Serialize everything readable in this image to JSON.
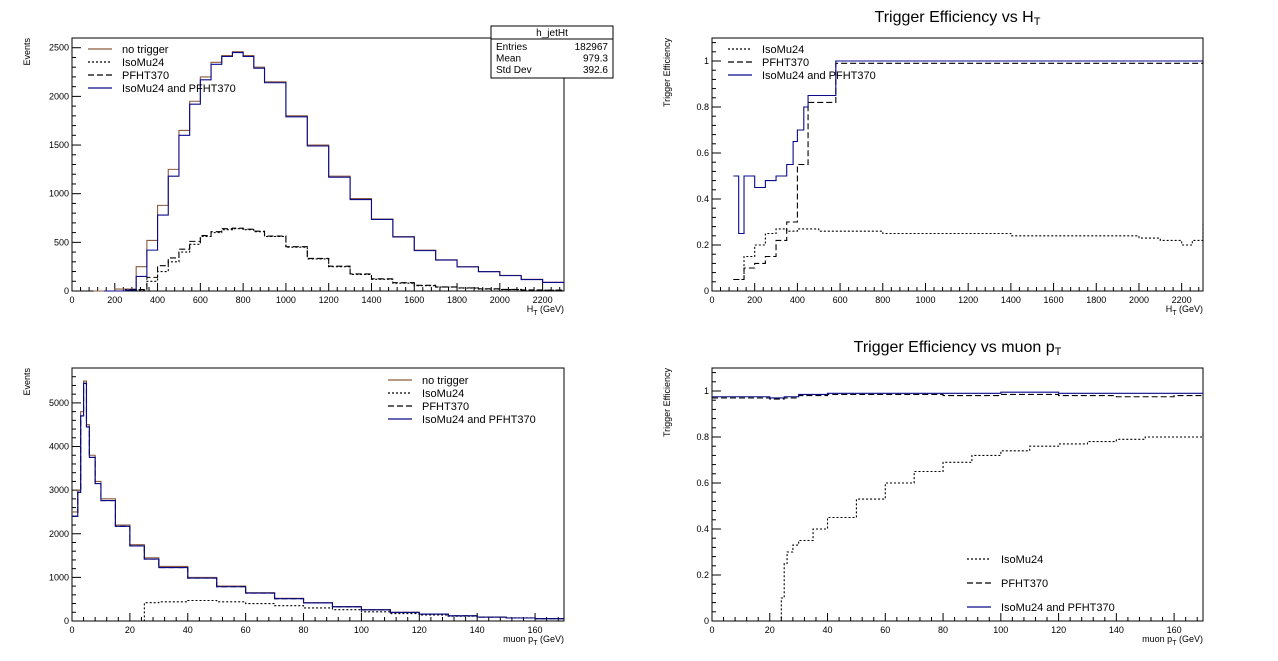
{
  "colors": {
    "no_trigger": "#8b5a3c",
    "isomu24": "#000000",
    "pfht370": "#000000",
    "both": "#0a0a8c",
    "axis": "#000000"
  },
  "chart_data": [
    {
      "id": "p1",
      "type": "line",
      "title": "",
      "xlabel": "H",
      "xlabel_sub": "T",
      "xlabel_unit": " (GeV)",
      "ylabel": "Events",
      "xlim": [
        0,
        2300
      ],
      "ylim": [
        0,
        2600
      ],
      "xticks": [
        0,
        200,
        400,
        600,
        800,
        1000,
        1200,
        1400,
        1600,
        1800,
        2000,
        2200
      ],
      "yticks": [
        0,
        500,
        1000,
        1500,
        2000,
        2500
      ],
      "legend": [
        "no trigger",
        "IsoMu24",
        "PFHT370",
        "IsoMu24 and PFHT370"
      ],
      "legend_position": "top-left",
      "stats_box": {
        "title": "h_jetHt",
        "rows": [
          [
            "Entries",
            "182967"
          ],
          [
            "Mean",
            "979.3"
          ],
          [
            "Std Dev",
            "392.6"
          ]
        ]
      },
      "series": [
        {
          "name": "no trigger",
          "style": "no_trigger",
          "x": [
            100,
            200,
            300,
            350,
            400,
            450,
            500,
            550,
            600,
            650,
            700,
            750,
            800,
            850,
            900,
            1000,
            1100,
            1200,
            1300,
            1400,
            1500,
            1600,
            1700,
            1800,
            1900,
            2000,
            2100,
            2200,
            2300
          ],
          "y": [
            0,
            20,
            250,
            520,
            880,
            1250,
            1650,
            1950,
            2200,
            2350,
            2420,
            2460,
            2420,
            2300,
            2150,
            1800,
            1500,
            1180,
            950,
            740,
            560,
            420,
            320,
            250,
            200,
            160,
            120,
            90,
            80
          ]
        },
        {
          "name": "IsoMu24",
          "style": "isomu24",
          "x": [
            150,
            250,
            350,
            400,
            450,
            500,
            550,
            600,
            650,
            700,
            750,
            800,
            850,
            900,
            1000,
            1100,
            1200,
            1300,
            1400,
            1500,
            1600,
            1700,
            1800,
            1900,
            2000,
            2100,
            2200,
            2300
          ],
          "y": [
            0,
            10,
            100,
            200,
            300,
            400,
            480,
            560,
            600,
            630,
            640,
            630,
            610,
            560,
            450,
            330,
            250,
            170,
            120,
            80,
            55,
            40,
            30,
            20,
            15,
            10,
            8,
            5
          ]
        },
        {
          "name": "PFHT370",
          "style": "pfht370",
          "x": [
            150,
            250,
            350,
            400,
            450,
            500,
            550,
            600,
            650,
            700,
            750,
            800,
            850,
            900,
            1000,
            1100,
            1200,
            1300,
            1400,
            1500,
            1600,
            1700,
            1800,
            1900,
            2000,
            2100,
            2200,
            2300
          ],
          "y": [
            0,
            15,
            140,
            260,
            340,
            430,
            510,
            570,
            610,
            640,
            645,
            635,
            615,
            565,
            455,
            335,
            255,
            175,
            125,
            85,
            58,
            42,
            32,
            22,
            16,
            11,
            8,
            5
          ]
        },
        {
          "name": "IsoMu24 and PFHT370",
          "style": "both",
          "x": [
            150,
            250,
            300,
            350,
            400,
            450,
            500,
            550,
            600,
            650,
            700,
            750,
            800,
            850,
            900,
            1000,
            1100,
            1200,
            1300,
            1400,
            1500,
            1600,
            1700,
            1800,
            1900,
            2000,
            2100,
            2200,
            2300
          ],
          "y": [
            0,
            10,
            150,
            420,
            780,
            1180,
            1600,
            1920,
            2170,
            2330,
            2410,
            2450,
            2410,
            2290,
            2140,
            1790,
            1490,
            1170,
            940,
            735,
            555,
            415,
            318,
            248,
            198,
            158,
            118,
            88,
            78
          ]
        }
      ]
    },
    {
      "id": "p2",
      "type": "line",
      "title": "Trigger Efficiency vs H",
      "title_sub": "T",
      "xlabel": "H",
      "xlabel_sub": "T",
      "xlabel_unit": " (GeV)",
      "ylabel": "Trigger Efficiency",
      "xlim": [
        0,
        2300
      ],
      "ylim": [
        0,
        1.1
      ],
      "xticks": [
        0,
        200,
        400,
        600,
        800,
        1000,
        1200,
        1400,
        1600,
        1800,
        2000,
        2200
      ],
      "yticks": [
        0,
        0.2,
        0.4,
        0.6,
        0.8,
        1
      ],
      "legend": [
        "IsoMu24",
        "PFHT370",
        "IsoMu24 and PFHT370"
      ],
      "legend_position": "top-left",
      "series": [
        {
          "name": "IsoMu24",
          "style": "isomu24",
          "x": [
            100,
            150,
            200,
            250,
            300,
            350,
            400,
            500,
            600,
            800,
            1000,
            1200,
            1400,
            1600,
            1800,
            2000,
            2100,
            2200,
            2250,
            2300
          ],
          "y": [
            0.05,
            0.15,
            0.2,
            0.25,
            0.27,
            0.26,
            0.27,
            0.26,
            0.26,
            0.25,
            0.25,
            0.25,
            0.24,
            0.24,
            0.24,
            0.23,
            0.22,
            0.2,
            0.22,
            0.29
          ]
        },
        {
          "name": "PFHT370",
          "style": "pfht370",
          "x": [
            100,
            150,
            200,
            250,
            300,
            350,
            400,
            450,
            580,
            2300
          ],
          "y": [
            0.05,
            0.1,
            0.12,
            0.15,
            0.22,
            0.3,
            0.55,
            0.82,
            0.99,
            1.0
          ]
        },
        {
          "name": "IsoMu24 and PFHT370",
          "style": "both",
          "x": [
            100,
            125,
            150,
            200,
            250,
            300,
            350,
            380,
            400,
            430,
            450,
            580,
            2300
          ],
          "y": [
            0.5,
            0.25,
            0.5,
            0.45,
            0.48,
            0.5,
            0.55,
            0.65,
            0.7,
            0.8,
            0.85,
            1.0,
            1.0
          ]
        }
      ]
    },
    {
      "id": "p3",
      "type": "line",
      "title": "",
      "xlabel": "muon p",
      "xlabel_sub": "T",
      "xlabel_unit": " (GeV)",
      "ylabel": "Events",
      "xlim": [
        0,
        170
      ],
      "ylim": [
        0,
        5800
      ],
      "xticks": [
        0,
        20,
        40,
        60,
        80,
        100,
        120,
        140,
        160
      ],
      "yticks": [
        0,
        1000,
        2000,
        3000,
        4000,
        5000
      ],
      "legend": [
        "no trigger",
        "IsoMu24",
        "PFHT370",
        "IsoMu24 and PFHT370"
      ],
      "legend_position": "top-right",
      "series": [
        {
          "name": "no trigger",
          "style": "no_trigger",
          "x": [
            0,
            2,
            3,
            4,
            5,
            6,
            8,
            10,
            15,
            20,
            25,
            30,
            40,
            50,
            60,
            70,
            80,
            90,
            100,
            110,
            120,
            130,
            140,
            150,
            160,
            170
          ],
          "y": [
            2500,
            3000,
            4800,
            5500,
            4500,
            3800,
            3200,
            2800,
            2200,
            1750,
            1450,
            1250,
            1000,
            800,
            650,
            520,
            420,
            330,
            260,
            200,
            160,
            120,
            90,
            70,
            55,
            45
          ]
        },
        {
          "name": "IsoMu24",
          "style": "isomu24",
          "x": [
            0,
            24,
            25,
            30,
            40,
            50,
            60,
            70,
            80,
            90,
            100,
            110,
            120,
            130,
            140,
            150,
            160,
            170
          ],
          "y": [
            0,
            0,
            420,
            440,
            470,
            440,
            400,
            350,
            300,
            260,
            210,
            170,
            140,
            110,
            90,
            70,
            55,
            40
          ]
        },
        {
          "name": "PFHT370",
          "style": "pfht370",
          "x": [
            0,
            2,
            3,
            4,
            5,
            6,
            8,
            10,
            15,
            20,
            25,
            30,
            40,
            50,
            60,
            70,
            80,
            90,
            100,
            110,
            120,
            130,
            140,
            150,
            160,
            170
          ],
          "y": [
            2400,
            2950,
            4700,
            5450,
            4450,
            3750,
            3150,
            2760,
            2170,
            1720,
            1420,
            1225,
            985,
            785,
            640,
            512,
            414,
            325,
            256,
            197,
            158,
            118,
            89,
            69,
            54,
            44
          ]
        },
        {
          "name": "IsoMu24 and PFHT370",
          "style": "both",
          "x": [
            0,
            2,
            3,
            4,
            5,
            6,
            8,
            10,
            15,
            20,
            25,
            30,
            40,
            50,
            60,
            70,
            80,
            90,
            100,
            110,
            120,
            130,
            140,
            150,
            160,
            170
          ],
          "y": [
            2400,
            2950,
            4700,
            5450,
            4450,
            3750,
            3150,
            2760,
            2170,
            1720,
            1420,
            1225,
            985,
            785,
            640,
            512,
            414,
            325,
            256,
            197,
            158,
            118,
            89,
            69,
            54,
            44
          ]
        }
      ]
    },
    {
      "id": "p4",
      "type": "line",
      "title": "Trigger Efficiency vs muon p",
      "title_sub": "T",
      "xlabel": "muon p",
      "xlabel_sub": "T",
      "xlabel_unit": " (GeV)",
      "ylabel": "Trigger Efficiency",
      "xlim": [
        0,
        170
      ],
      "ylim": [
        0,
        1.1
      ],
      "xticks": [
        0,
        20,
        40,
        60,
        80,
        100,
        120,
        140,
        160
      ],
      "yticks": [
        0,
        0.2,
        0.4,
        0.6,
        0.8,
        1
      ],
      "legend": [
        "IsoMu24",
        "PFHT370",
        "IsoMu24 and PFHT370"
      ],
      "legend_position": "bottom-right",
      "series": [
        {
          "name": "IsoMu24",
          "style": "isomu24",
          "x": [
            0,
            23,
            24,
            25,
            26,
            28,
            30,
            35,
            40,
            50,
            60,
            70,
            80,
            90,
            100,
            110,
            120,
            130,
            140,
            150,
            160,
            170
          ],
          "y": [
            0,
            0,
            0.1,
            0.25,
            0.3,
            0.33,
            0.35,
            0.4,
            0.45,
            0.53,
            0.6,
            0.65,
            0.69,
            0.72,
            0.74,
            0.76,
            0.77,
            0.78,
            0.79,
            0.8,
            0.8,
            0.82
          ]
        },
        {
          "name": "PFHT370",
          "style": "pfht370",
          "x": [
            0,
            10,
            20,
            25,
            30,
            40,
            60,
            80,
            100,
            120,
            140,
            160,
            170
          ],
          "y": [
            0.97,
            0.97,
            0.965,
            0.97,
            0.98,
            0.985,
            0.985,
            0.98,
            0.985,
            0.98,
            0.975,
            0.98,
            0.97
          ]
        },
        {
          "name": "IsoMu24 and PFHT370",
          "style": "both",
          "x": [
            0,
            10,
            20,
            25,
            30,
            40,
            60,
            80,
            100,
            120,
            140,
            160,
            170
          ],
          "y": [
            0.975,
            0.975,
            0.97,
            0.975,
            0.985,
            0.99,
            0.99,
            0.99,
            0.995,
            0.99,
            0.99,
            0.99,
            0.985
          ]
        }
      ]
    }
  ]
}
